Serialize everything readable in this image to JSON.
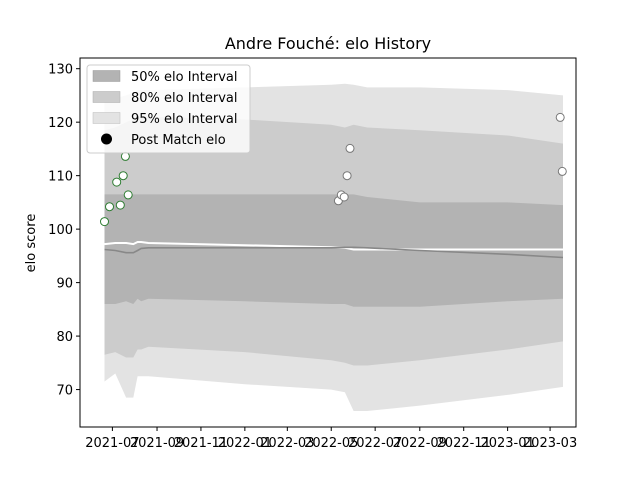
{
  "chart_data": {
    "type": "line",
    "title": "Andre Fouché: elo History",
    "xlabel": "",
    "ylabel": "elo score",
    "ylim": [
      63,
      132
    ],
    "xlim": [
      "2021-05-17",
      "2023-04-06"
    ],
    "y_ticks": [
      70,
      80,
      90,
      100,
      110,
      120,
      130
    ],
    "x_ticks": [
      "2021-07",
      "2021-09",
      "2021-11",
      "2022-01",
      "2022-03",
      "2022-05",
      "2022-07",
      "2022-09",
      "2022-11",
      "2023-01",
      "2023-03"
    ],
    "grid": false,
    "legend_position": "top-left",
    "legend": [
      {
        "label": "50% elo Interval",
        "kind": "band",
        "color": "#b3b3b3"
      },
      {
        "label": "80% elo Interval",
        "kind": "band",
        "color": "#cccccc"
      },
      {
        "label": "95% elo Interval",
        "kind": "band",
        "color": "#e3e3e3"
      },
      {
        "label": "Post Match elo",
        "kind": "point",
        "color": "#000000"
      }
    ],
    "colors": {
      "band_50": "#b3b3b3",
      "band_80": "#cccccc",
      "band_95": "#e3e3e3",
      "mean_line": "#888888",
      "median_line": "#ffffff",
      "early_point_edge": "#2e7d32",
      "late_point_edge": "#777777"
    },
    "interval_bands": {
      "dates": [
        "2021-06-20",
        "2021-07-05",
        "2021-07-20",
        "2021-07-30",
        "2021-08-05",
        "2021-08-10",
        "2021-08-20",
        "2022-01-01",
        "2022-05-01",
        "2022-05-20",
        "2022-06-01",
        "2022-06-20",
        "2022-09-01",
        "2023-01-01",
        "2023-03-19"
      ],
      "lo95": [
        71.5,
        73.0,
        68.5,
        68.5,
        72.5,
        72.5,
        72.5,
        71.0,
        70.0,
        69.5,
        66.0,
        66.0,
        67.0,
        69.0,
        70.5
      ],
      "lo80": [
        76.5,
        77.0,
        76.0,
        76.0,
        77.5,
        77.5,
        78.0,
        77.0,
        75.5,
        75.0,
        74.5,
        74.5,
        75.5,
        77.5,
        79.0
      ],
      "lo50": [
        86.0,
        86.0,
        86.5,
        86.0,
        87.0,
        86.5,
        87.0,
        86.5,
        86.0,
        86.0,
        85.5,
        85.5,
        85.5,
        86.5,
        87.0
      ],
      "hi50": [
        106.5,
        106.5,
        106.5,
        106.5,
        106.5,
        106.5,
        106.5,
        106.5,
        106.5,
        106.5,
        106.5,
        106.0,
        105.0,
        105.0,
        104.5
      ],
      "hi80": [
        118.5,
        119.0,
        120.0,
        120.5,
        121.0,
        121.0,
        121.0,
        120.5,
        119.5,
        119.0,
        119.5,
        119.0,
        118.5,
        117.5,
        116.0
      ],
      "hi95": [
        124.0,
        124.5,
        125.0,
        125.5,
        126.0,
        126.0,
        126.0,
        126.5,
        127.0,
        127.2,
        127.0,
        126.5,
        126.5,
        126.0,
        125.0
      ],
      "mean": [
        96.2,
        96.0,
        95.6,
        95.6,
        96.0,
        96.4,
        96.5,
        96.5,
        96.5,
        96.6,
        96.6,
        96.5,
        96.0,
        95.3,
        94.7
      ],
      "median": [
        97.2,
        97.4,
        97.4,
        97.2,
        97.6,
        97.6,
        97.4,
        97.0,
        96.6,
        96.5,
        96.2,
        96.2,
        96.2,
        96.2,
        96.2
      ]
    },
    "series": [
      {
        "name": "Post Match elo",
        "points": [
          {
            "x": "2021-06-20",
            "y": 101.4,
            "group": "early"
          },
          {
            "x": "2021-06-27",
            "y": 104.2,
            "group": "early"
          },
          {
            "x": "2021-07-07",
            "y": 108.8,
            "group": "early"
          },
          {
            "x": "2021-07-12",
            "y": 104.5,
            "group": "early"
          },
          {
            "x": "2021-07-16",
            "y": 110.0,
            "group": "early"
          },
          {
            "x": "2021-07-19",
            "y": 113.6,
            "group": "early"
          },
          {
            "x": "2021-07-23",
            "y": 106.4,
            "group": "early"
          },
          {
            "x": "2022-05-11",
            "y": 105.3,
            "group": "late"
          },
          {
            "x": "2022-05-15",
            "y": 106.4,
            "group": "late"
          },
          {
            "x": "2022-05-19",
            "y": 106.0,
            "group": "late"
          },
          {
            "x": "2022-05-23",
            "y": 110.0,
            "group": "late"
          },
          {
            "x": "2022-05-27",
            "y": 115.1,
            "group": "late"
          },
          {
            "x": "2023-03-15",
            "y": 120.9,
            "group": "late"
          },
          {
            "x": "2023-03-18",
            "y": 110.8,
            "group": "late"
          }
        ]
      }
    ]
  }
}
